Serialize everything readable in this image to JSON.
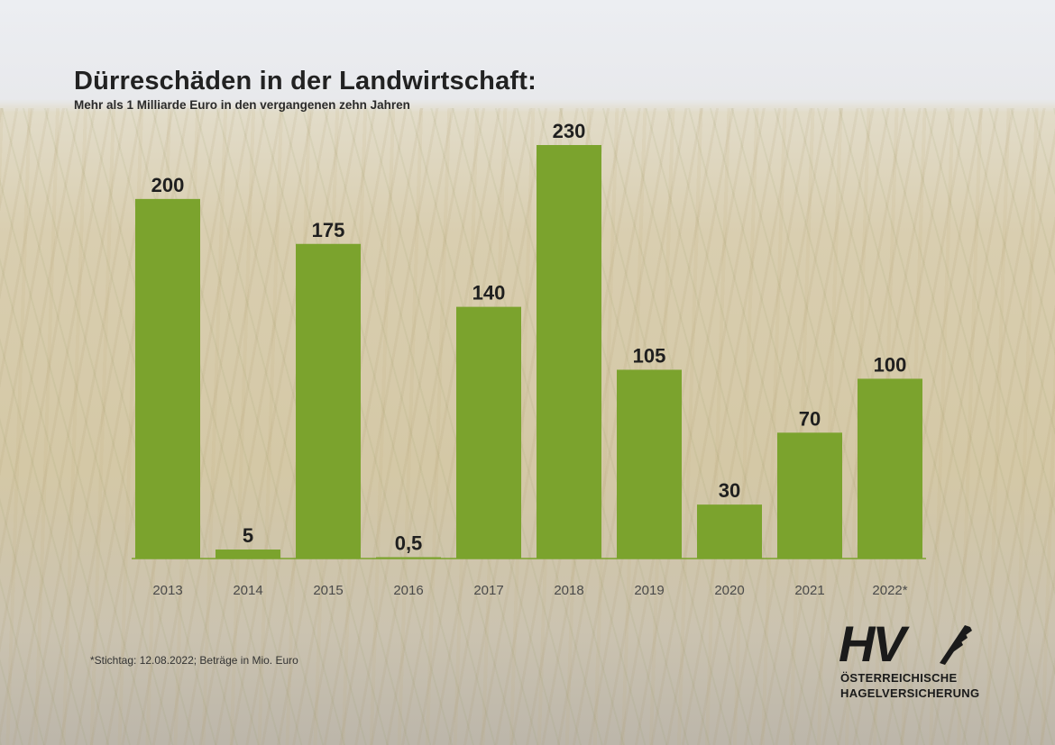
{
  "title": "Dürreschäden in der Landwirtschaft:",
  "subtitle": "Mehr als 1 Milliarde Euro in den vergangenen zehn Jahren",
  "footnote": "*Stichtag: 12.08.2022; Beträge in Mio. Euro",
  "logo": {
    "mark_text": "HV",
    "line1": "ÖSTERREICHISCHE",
    "line2": "HAGELVERSICHERUNG"
  },
  "colors": {
    "bar": "#7ba32d",
    "label": "#1f1f1f",
    "tick": "#4a4a4a",
    "axis": "#7ba32d"
  },
  "chart_data": {
    "type": "bar",
    "title": "Dürreschäden in der Landwirtschaft:",
    "subtitle": "Mehr als 1 Milliarde Euro in den vergangenen zehn Jahren",
    "categories": [
      "2013",
      "2014",
      "2015",
      "2016",
      "2017",
      "2018",
      "2019",
      "2020",
      "2021",
      "2022*"
    ],
    "values": [
      200,
      5,
      175,
      0.5,
      140,
      230,
      105,
      30,
      70,
      100
    ],
    "value_labels": [
      "200",
      "5",
      "175",
      "0,5",
      "140",
      "230",
      "105",
      "30",
      "70",
      "100"
    ],
    "ylim": [
      0,
      230
    ],
    "grid": false,
    "legend": "none"
  }
}
